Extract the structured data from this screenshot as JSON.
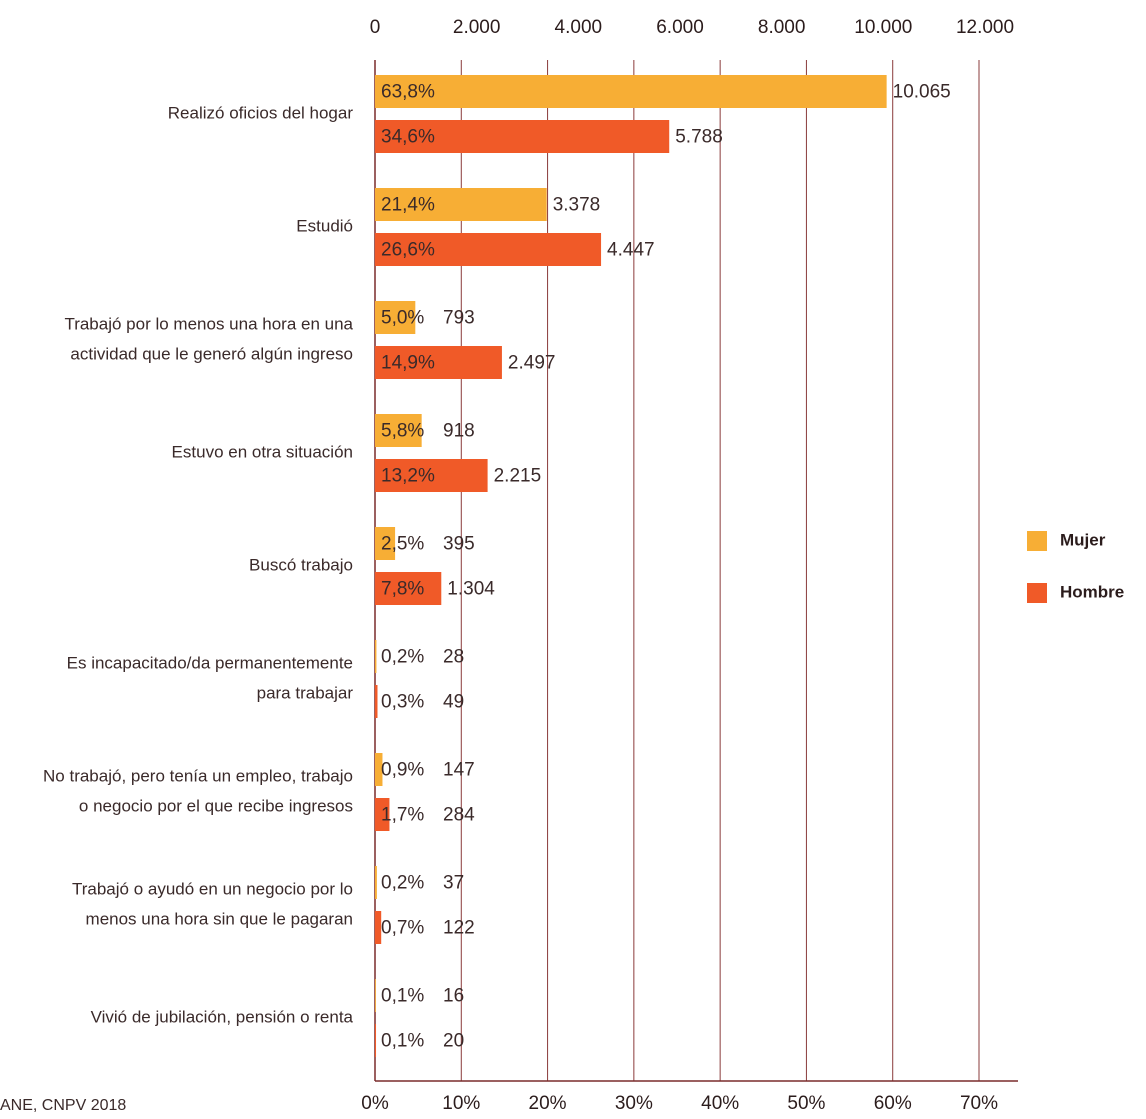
{
  "chart_data": {
    "type": "hbar",
    "categories": [
      [
        "Realizó oficios del hogar"
      ],
      [
        "Estudió"
      ],
      [
        "Trabajó por lo menos una hora en una",
        "actividad que le generó algún ingreso"
      ],
      [
        "Estuvo en otra situación"
      ],
      [
        "Buscó trabajo"
      ],
      [
        "Es incapacitado/da permanentemente",
        "para trabajar"
      ],
      [
        "No trabajó, pero tenía un empleo, trabajo",
        "o negocio por el que recibe ingresos"
      ],
      [
        "Trabajó o ayudó en un negocio por lo",
        "menos una hora sin que le pagaran"
      ],
      [
        "Vivió de jubilación, pensión o renta"
      ]
    ],
    "series": [
      {
        "name": "Mujer",
        "color": "#f7ae35",
        "values": [
          10065,
          3378,
          793,
          918,
          395,
          28,
          147,
          37,
          16
        ],
        "value_labels": [
          "10.065",
          "3.378",
          "793",
          "918",
          "395",
          "28",
          "147",
          "37",
          "16"
        ],
        "share_labels": [
          "63,8%",
          "21,4%",
          "5,0%",
          "5,8%",
          "2,5%",
          "0,2%",
          "0,9%",
          "0,2%",
          "0,1%"
        ]
      },
      {
        "name": "Hombre",
        "color": "#f05a28",
        "values": [
          5788,
          4447,
          2497,
          2215,
          1304,
          49,
          284,
          122,
          20
        ],
        "value_labels": [
          "5.788",
          "4.447",
          "2.497",
          "2.215",
          "1.304",
          "49",
          "284",
          "122",
          "20"
        ],
        "share_labels": [
          "34,6%",
          "26,6%",
          "14,9%",
          "13,2%",
          "7,8%",
          "0,3%",
          "1,7%",
          "0,7%",
          "0,1%"
        ]
      }
    ],
    "xlim": [
      0,
      12000
    ],
    "xticks": [
      0,
      {
        "value": 2000,
        "label": "2.000"
      },
      {
        "value": 4000,
        "label": "4.000"
      },
      {
        "value": 6000,
        "label": "6.000"
      },
      {
        "value": 8000,
        "label": "8.000"
      },
      {
        "value": 10000,
        "label": "10.000"
      },
      {
        "value": 12000,
        "label": "12.000"
      }
    ],
    "x2lim": [
      0,
      70
    ],
    "x2ticks": [
      {
        "value": 0,
        "label": "0%"
      },
      {
        "value": 10,
        "label": "10%"
      },
      {
        "value": 20,
        "label": "20%"
      },
      {
        "value": 30,
        "label": "30%"
      },
      {
        "value": 40,
        "label": "40%"
      },
      {
        "value": 50,
        "label": "50%"
      },
      {
        "value": 60,
        "label": "60%"
      },
      {
        "value": 70,
        "label": "70%"
      }
    ],
    "grid": true,
    "legend": "right",
    "source": "ANE, CNPV 2018"
  }
}
